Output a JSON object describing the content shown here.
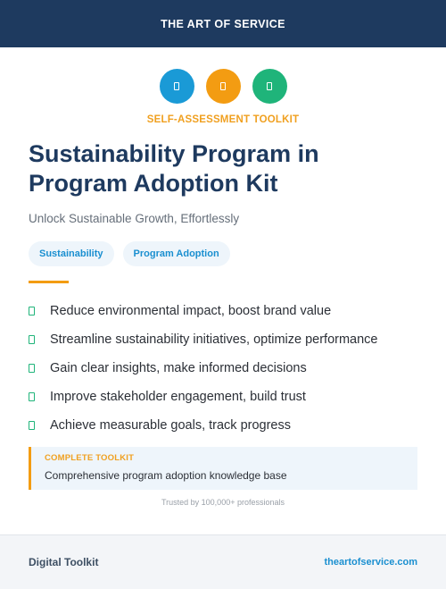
{
  "header": {
    "brand": "THE ART OF SERVICE"
  },
  "icons": [
    {
      "name": "blue-icon",
      "color": "#1a9ad6"
    },
    {
      "name": "orange-icon",
      "color": "#f39c12"
    },
    {
      "name": "green-icon",
      "color": "#1fb47a"
    }
  ],
  "kicker": "SELF-ASSESSMENT TOOLKIT",
  "title": "Sustainability Program in Program Adoption Kit",
  "subtitle": "Unlock Sustainable Growth, Effortlessly",
  "tags": [
    "Sustainability",
    "Program Adoption"
  ],
  "benefits": [
    "Reduce environmental impact, boost brand value",
    "Streamline sustainability initiatives, optimize performance",
    "Gain clear insights, make informed decisions",
    "Improve stakeholder engagement, build trust",
    "Achieve measurable goals, track progress"
  ],
  "toolkit": {
    "label": "COMPLETE TOOLKIT",
    "description": "Comprehensive program adoption knowledge base"
  },
  "trusted": "Trusted by 100,000+ professionals",
  "footer": {
    "left": "Digital Toolkit",
    "right": "theartofservice.com"
  },
  "colors": {
    "header_bg": "#1e3a5f",
    "accent_orange": "#f39c12",
    "accent_blue": "#1a8fd0",
    "accent_green": "#1fb47a"
  }
}
